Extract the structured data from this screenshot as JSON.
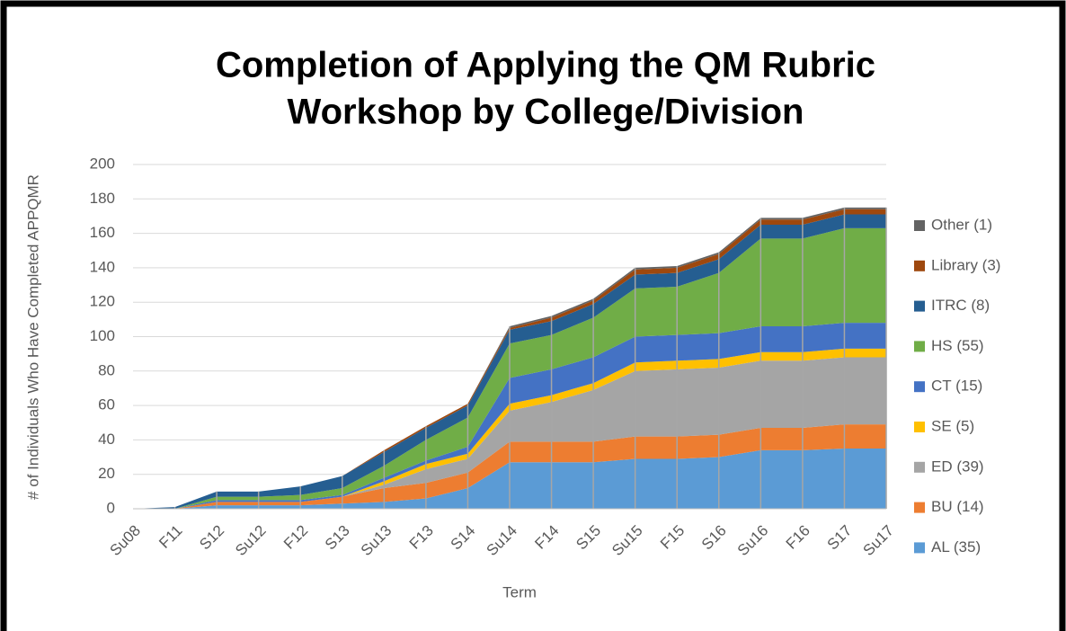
{
  "chart_data": {
    "type": "stacked_area",
    "title": [
      "Completion of Applying the QM Rubric",
      "Workshop by College/Division"
    ],
    "x_label": "Term",
    "y_label": "# of Individuals Who Have Completed APPQMR",
    "categories": [
      "Su08",
      "F11",
      "S12",
      "Su12",
      "F12",
      "S13",
      "Su13",
      "F13",
      "S14",
      "Su14",
      "F14",
      "S15",
      "Su15",
      "F15",
      "S16",
      "Su16",
      "F16",
      "S17",
      "Su17"
    ],
    "series": [
      {
        "name": "AL (35)",
        "color": "#5b9bd5",
        "values": [
          0,
          0,
          2,
          2,
          2,
          3,
          4,
          6,
          12,
          27,
          27,
          27,
          29,
          29,
          30,
          34,
          34,
          35,
          35
        ]
      },
      {
        "name": "BU (14)",
        "color": "#ed7d31",
        "values": [
          0,
          0,
          2,
          2,
          2,
          4,
          8,
          9,
          9,
          12,
          12,
          12,
          13,
          13,
          13,
          13,
          13,
          14,
          14
        ]
      },
      {
        "name": "ED (39)",
        "color": "#a5a5a5",
        "values": [
          0,
          0,
          0,
          0,
          0,
          0,
          2,
          8,
          8,
          18,
          23,
          30,
          38,
          39,
          39,
          39,
          39,
          39,
          39
        ]
      },
      {
        "name": "SE (5)",
        "color": "#ffc000",
        "values": [
          0,
          0,
          0,
          0,
          0,
          0,
          2,
          3,
          3,
          4,
          4,
          4,
          5,
          5,
          5,
          5,
          5,
          5,
          5
        ]
      },
      {
        "name": "CT (15)",
        "color": "#4472c4",
        "values": [
          0,
          0,
          1,
          1,
          1,
          1,
          2,
          2,
          4,
          15,
          15,
          15,
          15,
          15,
          15,
          15,
          15,
          15,
          15
        ]
      },
      {
        "name": "HS (55)",
        "color": "#70ad47",
        "values": [
          0,
          0,
          2,
          2,
          3,
          4,
          7,
          12,
          17,
          20,
          20,
          23,
          28,
          28,
          35,
          51,
          51,
          55,
          55
        ]
      },
      {
        "name": "ITRC (8)",
        "color": "#255e91",
        "values": [
          0,
          1,
          3,
          3,
          5,
          7,
          8,
          7,
          7,
          8,
          8,
          8,
          8,
          8,
          8,
          8,
          8,
          8,
          8
        ]
      },
      {
        "name": "Library (3)",
        "color": "#9e480e",
        "values": [
          0,
          0,
          0,
          0,
          0,
          0,
          1,
          1,
          1,
          1,
          2,
          2,
          3,
          3,
          3,
          3,
          3,
          3,
          3
        ]
      },
      {
        "name": "Other (1)",
        "color": "#636363",
        "values": [
          0,
          0,
          0,
          0,
          0,
          0,
          0,
          0,
          0,
          1,
          1,
          1,
          1,
          1,
          1,
          1,
          1,
          1,
          1
        ]
      }
    ],
    "ylim": [
      0,
      200
    ],
    "yticks": [
      0,
      20,
      40,
      60,
      80,
      100,
      120,
      140,
      160,
      180,
      200
    ],
    "grid": true,
    "legend": "right"
  }
}
